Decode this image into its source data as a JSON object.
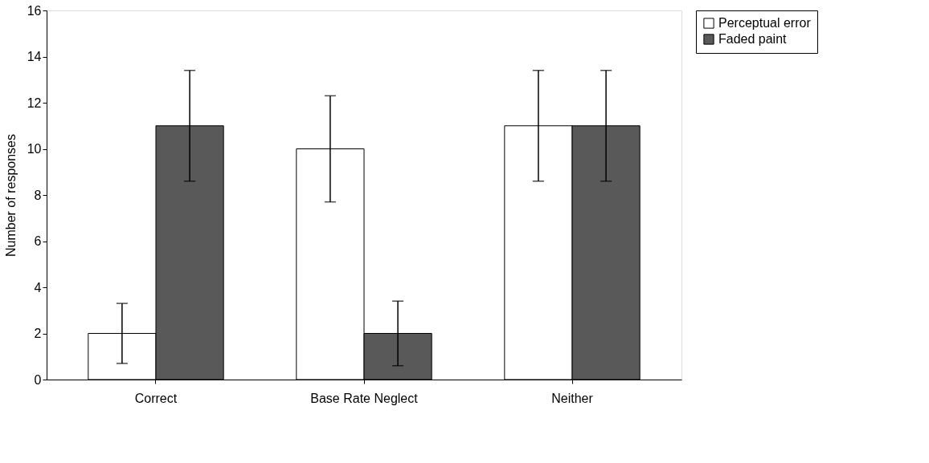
{
  "chart_data": {
    "type": "bar",
    "ylabel": "Number of responses",
    "categories": [
      "Correct",
      "Base Rate Neglect",
      "Neither"
    ],
    "series": [
      {
        "name": "Perceptual error",
        "color": "#ffffff",
        "values": [
          2,
          10,
          11
        ],
        "errors": [
          1.3,
          2.3,
          2.4
        ]
      },
      {
        "name": "Faded paint",
        "color": "#595959",
        "values": [
          11,
          2,
          11
        ],
        "errors": [
          2.4,
          1.4,
          2.4
        ]
      }
    ],
    "ylim": [
      0,
      16
    ],
    "yticks": [
      0,
      2,
      4,
      6,
      8,
      10,
      12,
      14,
      16
    ],
    "grid": false,
    "legend": "right"
  }
}
